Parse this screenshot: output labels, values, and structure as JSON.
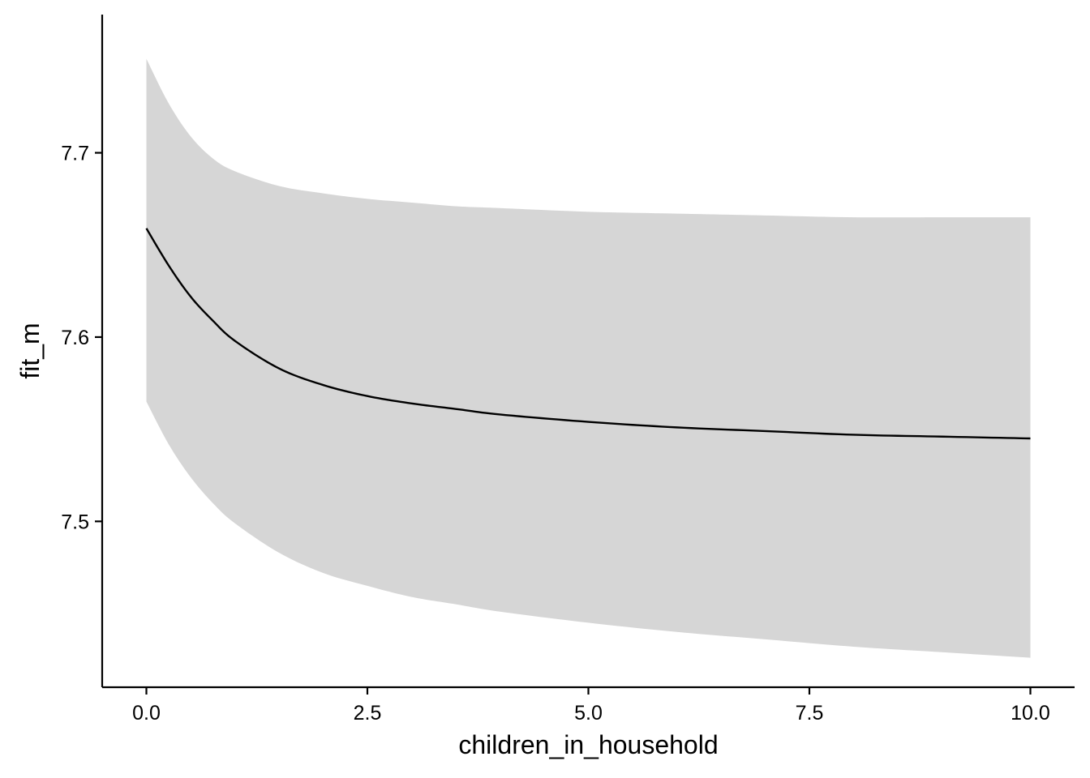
{
  "chart_data": {
    "type": "line",
    "xlabel": "children_in_household",
    "ylabel": "fit_m",
    "xlim": [
      -0.5,
      10.5
    ],
    "ylim": [
      7.41,
      7.775
    ],
    "x_ticks": [
      0,
      2.5,
      5,
      7.5,
      10
    ],
    "x_tick_labels": [
      "0.0",
      "2.5",
      "5.0",
      "7.5",
      "10.0"
    ],
    "y_ticks": [
      7.5,
      7.6,
      7.7
    ],
    "y_tick_labels": [
      "7.5",
      "7.6",
      "7.7"
    ],
    "grid": false,
    "band_color": "#d6d6d6",
    "line_color": "#000000",
    "series": [
      {
        "x": [
          0,
          0.25,
          0.5,
          0.75,
          1,
          1.5,
          2,
          2.5,
          3,
          3.5,
          4,
          5,
          6,
          7,
          8,
          9,
          10
        ],
        "y": [
          7.659,
          7.639,
          7.622,
          7.609,
          7.598,
          7.583,
          7.574,
          7.568,
          7.564,
          7.561,
          7.558,
          7.554,
          7.551,
          7.549,
          7.547,
          7.546,
          7.545
        ],
        "lower": [
          7.565,
          7.542,
          7.524,
          7.51,
          7.499,
          7.483,
          7.472,
          7.465,
          7.459,
          7.455,
          7.451,
          7.445,
          7.44,
          7.436,
          7.432,
          7.429,
          7.426
        ],
        "upper": [
          7.751,
          7.727,
          7.709,
          7.697,
          7.69,
          7.682,
          7.678,
          7.675,
          7.673,
          7.671,
          7.67,
          7.668,
          7.667,
          7.666,
          7.665,
          7.665,
          7.665
        ]
      }
    ]
  }
}
